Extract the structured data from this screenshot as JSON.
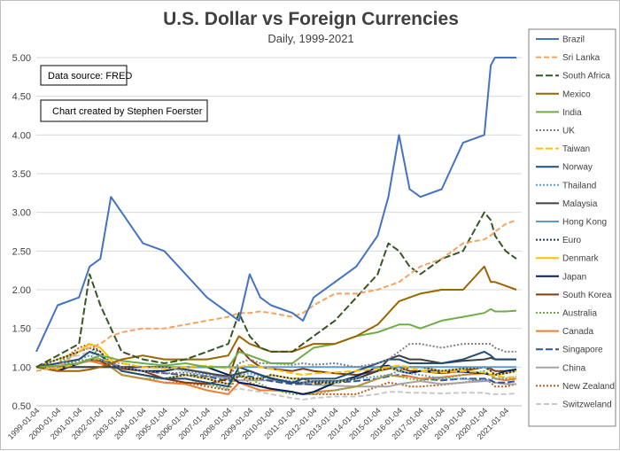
{
  "chart_data": {
    "type": "line",
    "title": "U.S. Dollar vs Foreign Currencies",
    "subtitle": "Daily, 1999-2021",
    "annotations": [
      "Data source: FRED",
      "Chart created by Stephen Foerster"
    ],
    "ylim": [
      0.5,
      5.0
    ],
    "yticks": [
      "0.50",
      "1.00",
      "1.50",
      "2.00",
      "2.50",
      "3.00",
      "3.50",
      "4.00",
      "4.50",
      "5.00"
    ],
    "xticks": [
      "1999-01-04",
      "2000-01-04",
      "2001-01-04",
      "2002-01-04",
      "2003-01-04",
      "2004-01-04",
      "2005-01-04",
      "2006-01-04",
      "2007-01-04",
      "2008-01-04",
      "2009-01-04",
      "2010-01-04",
      "2011-01-04",
      "2012-01-04",
      "2013-01-04",
      "2014-01-04",
      "2015-01-04",
      "2016-01-04",
      "2017-01-04",
      "2018-01-04",
      "2019-01-04",
      "2020-01-04",
      "2021-01-04"
    ],
    "x": [
      1999.0,
      2000.0,
      2001.0,
      2001.5,
      2002.0,
      2002.5,
      2003.0,
      2004.0,
      2005.0,
      2006.0,
      2007.0,
      2008.0,
      2008.5,
      2009.0,
      2009.5,
      2010.0,
      2011.0,
      2011.5,
      2012.0,
      2013.0,
      2014.0,
      2015.0,
      2015.5,
      2016.0,
      2016.5,
      2017.0,
      2018.0,
      2019.0,
      2020.0,
      2020.3,
      2020.5,
      2021.0,
      2021.5
    ],
    "legend_position": "right",
    "series": [
      {
        "name": "Brazil",
        "color": "#4472c4",
        "dash": "",
        "values": [
          1.2,
          1.8,
          1.9,
          2.3,
          2.4,
          3.2,
          3.0,
          2.6,
          2.5,
          2.2,
          1.9,
          1.7,
          1.6,
          2.2,
          1.9,
          1.8,
          1.7,
          1.6,
          1.9,
          2.1,
          2.3,
          2.7,
          3.2,
          4.0,
          3.3,
          3.2,
          3.3,
          3.9,
          4.0,
          4.9,
          5.2,
          5.3,
          5.2
        ]
      },
      {
        "name": "Sri Lanka",
        "color": "#f4a460",
        "dash": "6,3",
        "values": [
          0.95,
          1.0,
          1.2,
          1.25,
          1.3,
          1.4,
          1.45,
          1.5,
          1.5,
          1.55,
          1.6,
          1.65,
          1.7,
          1.7,
          1.72,
          1.7,
          1.65,
          1.7,
          1.8,
          1.95,
          1.95,
          2.0,
          2.05,
          2.1,
          2.2,
          2.3,
          2.4,
          2.6,
          2.65,
          2.7,
          2.75,
          2.85,
          2.9
        ]
      },
      {
        "name": "South Africa",
        "color": "#375623",
        "dash": "8,3",
        "values": [
          1.0,
          1.15,
          1.3,
          2.2,
          1.8,
          1.5,
          1.2,
          1.1,
          1.05,
          1.1,
          1.2,
          1.3,
          1.7,
          1.4,
          1.25,
          1.2,
          1.2,
          1.3,
          1.4,
          1.6,
          1.9,
          2.2,
          2.6,
          2.5,
          2.3,
          2.2,
          2.4,
          2.5,
          3.0,
          2.9,
          2.7,
          2.5,
          2.4
        ]
      },
      {
        "name": "Mexico",
        "color": "#9c6500",
        "dash": "",
        "values": [
          1.0,
          0.95,
          0.95,
          0.97,
          1.0,
          1.05,
          1.1,
          1.15,
          1.1,
          1.1,
          1.1,
          1.15,
          1.4,
          1.3,
          1.25,
          1.2,
          1.2,
          1.25,
          1.3,
          1.3,
          1.4,
          1.55,
          1.7,
          1.85,
          1.9,
          1.95,
          2.0,
          2.0,
          2.3,
          2.1,
          2.1,
          2.05,
          2.0
        ]
      },
      {
        "name": "India",
        "color": "#70ad47",
        "dash": "",
        "values": [
          1.0,
          1.02,
          1.05,
          1.1,
          1.15,
          1.12,
          1.08,
          1.05,
          1.02,
          1.05,
          1.0,
          1.0,
          1.2,
          1.15,
          1.1,
          1.05,
          1.05,
          1.15,
          1.25,
          1.3,
          1.4,
          1.45,
          1.5,
          1.55,
          1.55,
          1.5,
          1.6,
          1.65,
          1.7,
          1.75,
          1.72,
          1.72,
          1.73
        ]
      },
      {
        "name": "UK",
        "color": "#7f7f7f",
        "dash": "2,2",
        "values": [
          1.0,
          1.02,
          1.08,
          1.1,
          1.1,
          1.05,
          1.0,
          0.95,
          0.92,
          0.93,
          0.88,
          0.87,
          1.05,
          1.1,
          1.05,
          1.05,
          1.03,
          1.05,
          1.03,
          1.05,
          1.0,
          1.05,
          1.1,
          1.2,
          1.3,
          1.3,
          1.25,
          1.3,
          1.3,
          1.3,
          1.25,
          1.2,
          1.2
        ]
      },
      {
        "name": "Taiwan",
        "color": "#ffc000",
        "dash": "8,3",
        "values": [
          1.0,
          0.98,
          1.05,
          1.1,
          1.1,
          1.08,
          1.05,
          1.0,
          0.98,
          1.0,
          1.02,
          0.98,
          1.0,
          1.03,
          1.0,
          0.98,
          0.92,
          0.9,
          0.92,
          0.93,
          0.95,
          0.98,
          1.0,
          1.02,
          1.0,
          0.95,
          0.93,
          0.95,
          0.93,
          0.9,
          0.88,
          0.87,
          0.87
        ]
      },
      {
        "name": "Norway",
        "color": "#1f4e79",
        "dash": "",
        "values": [
          1.0,
          1.05,
          1.1,
          1.2,
          1.15,
          1.05,
          0.95,
          0.9,
          0.85,
          0.85,
          0.8,
          0.75,
          1.0,
          0.95,
          0.9,
          0.85,
          0.8,
          0.85,
          0.85,
          0.85,
          0.95,
          1.05,
          1.1,
          1.1,
          1.05,
          1.05,
          1.05,
          1.1,
          1.2,
          1.15,
          1.1,
          1.1,
          1.1
        ]
      },
      {
        "name": "Thailand",
        "color": "#5b9bd5",
        "dash": "2,2",
        "values": [
          1.0,
          1.0,
          1.1,
          1.15,
          1.1,
          1.05,
          1.05,
          1.0,
          1.0,
          0.95,
          0.9,
          0.85,
          0.9,
          0.92,
          0.88,
          0.85,
          0.82,
          0.8,
          0.82,
          0.82,
          0.85,
          0.88,
          0.9,
          0.95,
          0.92,
          0.9,
          0.85,
          0.85,
          0.82,
          0.85,
          0.85,
          0.85,
          0.87
        ]
      },
      {
        "name": "Malaysia",
        "color": "#404040",
        "dash": "",
        "values": [
          1.0,
          1.0,
          1.0,
          1.0,
          1.0,
          1.0,
          1.0,
          1.0,
          1.0,
          0.97,
          0.92,
          0.88,
          0.92,
          0.95,
          0.9,
          0.86,
          0.8,
          0.8,
          0.82,
          0.82,
          0.85,
          0.95,
          1.1,
          1.15,
          1.1,
          1.1,
          1.05,
          1.08,
          1.1,
          1.12,
          1.1,
          1.1,
          1.1
        ]
      },
      {
        "name": "Hong Kong",
        "color": "#5b9bd5",
        "dash": "",
        "values": [
          1.0,
          1.0,
          1.0,
          1.0,
          1.0,
          1.0,
          1.0,
          1.0,
          1.0,
          1.0,
          1.0,
          1.0,
          1.0,
          1.0,
          1.0,
          1.0,
          1.0,
          1.0,
          1.0,
          1.0,
          1.0,
          1.0,
          1.0,
          1.0,
          1.0,
          1.0,
          1.0,
          1.0,
          1.0,
          1.0,
          1.0,
          1.0,
          1.0
        ]
      },
      {
        "name": "Euro",
        "color": "#203864",
        "dash": "2,2",
        "values": [
          1.0,
          1.1,
          1.2,
          1.25,
          1.2,
          1.05,
          0.95,
          0.9,
          0.85,
          0.9,
          0.85,
          0.78,
          0.9,
          0.85,
          0.85,
          0.9,
          0.85,
          0.85,
          0.8,
          0.8,
          0.85,
          0.95,
          1.0,
          0.95,
          1.0,
          1.0,
          0.95,
          0.98,
          1.0,
          0.95,
          0.9,
          0.92,
          0.95
        ]
      },
      {
        "name": "Denmark",
        "color": "#ffc000",
        "dash": "",
        "values": [
          1.0,
          1.1,
          1.2,
          1.3,
          1.25,
          1.1,
          0.95,
          0.9,
          0.85,
          0.9,
          0.85,
          0.78,
          0.9,
          0.85,
          0.85,
          0.9,
          0.85,
          0.85,
          0.8,
          0.8,
          0.85,
          0.95,
          1.0,
          0.95,
          1.0,
          1.0,
          0.95,
          0.98,
          1.0,
          0.95,
          0.9,
          0.92,
          0.95
        ]
      },
      {
        "name": "Japan",
        "color": "#002060",
        "dash": "",
        "values": [
          1.0,
          0.95,
          1.05,
          1.1,
          1.1,
          1.05,
          1.0,
          0.95,
          0.95,
          1.0,
          1.0,
          0.9,
          0.8,
          0.78,
          0.75,
          0.72,
          0.68,
          0.65,
          0.68,
          0.8,
          0.88,
          1.0,
          1.02,
          0.95,
          0.92,
          0.95,
          0.95,
          0.94,
          0.92,
          0.9,
          0.9,
          0.95,
          0.97
        ]
      },
      {
        "name": "South Korea",
        "color": "#843c0c",
        "dash": "",
        "values": [
          1.0,
          0.95,
          1.05,
          1.1,
          1.08,
          1.0,
          0.98,
          0.95,
          0.85,
          0.8,
          0.78,
          0.85,
          1.25,
          1.1,
          1.0,
          0.98,
          0.95,
          0.98,
          0.95,
          0.92,
          0.9,
          0.95,
          0.98,
          1.0,
          0.95,
          0.95,
          0.92,
          0.95,
          1.0,
          0.98,
          0.95,
          0.95,
          0.97
        ]
      },
      {
        "name": "Australia",
        "color": "#70ad47",
        "dash": "2,2",
        "values": [
          1.0,
          1.05,
          1.2,
          1.25,
          1.15,
          1.0,
          0.9,
          0.85,
          0.85,
          0.85,
          0.78,
          0.72,
          0.95,
          0.85,
          0.78,
          0.72,
          0.65,
          0.65,
          0.65,
          0.7,
          0.75,
          0.85,
          0.9,
          0.88,
          0.85,
          0.83,
          0.85,
          0.9,
          0.95,
          0.9,
          0.85,
          0.85,
          0.88
        ]
      },
      {
        "name": "Canada",
        "color": "#ed7d31",
        "dash": "",
        "values": [
          1.0,
          0.98,
          1.05,
          1.08,
          1.05,
          1.0,
          0.9,
          0.85,
          0.8,
          0.78,
          0.7,
          0.65,
          0.8,
          0.75,
          0.7,
          0.7,
          0.68,
          0.65,
          0.68,
          0.7,
          0.75,
          0.85,
          0.9,
          0.88,
          0.88,
          0.85,
          0.87,
          0.9,
          0.92,
          0.9,
          0.85,
          0.83,
          0.85
        ]
      },
      {
        "name": "Singapore",
        "color": "#2f5597",
        "dash": "8,3",
        "values": [
          1.0,
          1.0,
          1.05,
          1.08,
          1.05,
          1.0,
          0.98,
          0.95,
          0.92,
          0.9,
          0.88,
          0.82,
          0.88,
          0.88,
          0.85,
          0.82,
          0.78,
          0.78,
          0.78,
          0.8,
          0.82,
          0.85,
          0.88,
          0.9,
          0.88,
          0.85,
          0.83,
          0.85,
          0.85,
          0.83,
          0.8,
          0.8,
          0.82
        ]
      },
      {
        "name": "China",
        "color": "#a5a5a5",
        "dash": "",
        "values": [
          1.0,
          1.0,
          1.0,
          1.0,
          1.0,
          1.0,
          1.0,
          1.0,
          1.0,
          0.97,
          0.93,
          0.85,
          0.83,
          0.83,
          0.83,
          0.83,
          0.8,
          0.78,
          0.77,
          0.76,
          0.75,
          0.75,
          0.75,
          0.78,
          0.8,
          0.82,
          0.78,
          0.8,
          0.82,
          0.82,
          0.8,
          0.78,
          0.78
        ]
      },
      {
        "name": "New Zealand",
        "color": "#c55a11",
        "dash": "2,2",
        "values": [
          1.0,
          1.05,
          1.25,
          1.3,
          1.2,
          1.0,
          0.9,
          0.85,
          0.8,
          0.8,
          0.75,
          0.7,
          0.9,
          0.8,
          0.75,
          0.72,
          0.68,
          0.65,
          0.65,
          0.65,
          0.65,
          0.75,
          0.8,
          0.78,
          0.75,
          0.75,
          0.77,
          0.8,
          0.85,
          0.8,
          0.75,
          0.75,
          0.78
        ]
      },
      {
        "name": "Switzweland",
        "color": "#c9c9c9",
        "dash": "6,3",
        "values": [
          1.0,
          1.1,
          1.15,
          1.2,
          1.1,
          1.0,
          0.9,
          0.85,
          0.85,
          0.85,
          0.78,
          0.7,
          0.72,
          0.7,
          0.68,
          0.65,
          0.6,
          0.58,
          0.6,
          0.62,
          0.62,
          0.65,
          0.68,
          0.68,
          0.67,
          0.67,
          0.66,
          0.67,
          0.67,
          0.65,
          0.65,
          0.65,
          0.66
        ]
      }
    ]
  }
}
